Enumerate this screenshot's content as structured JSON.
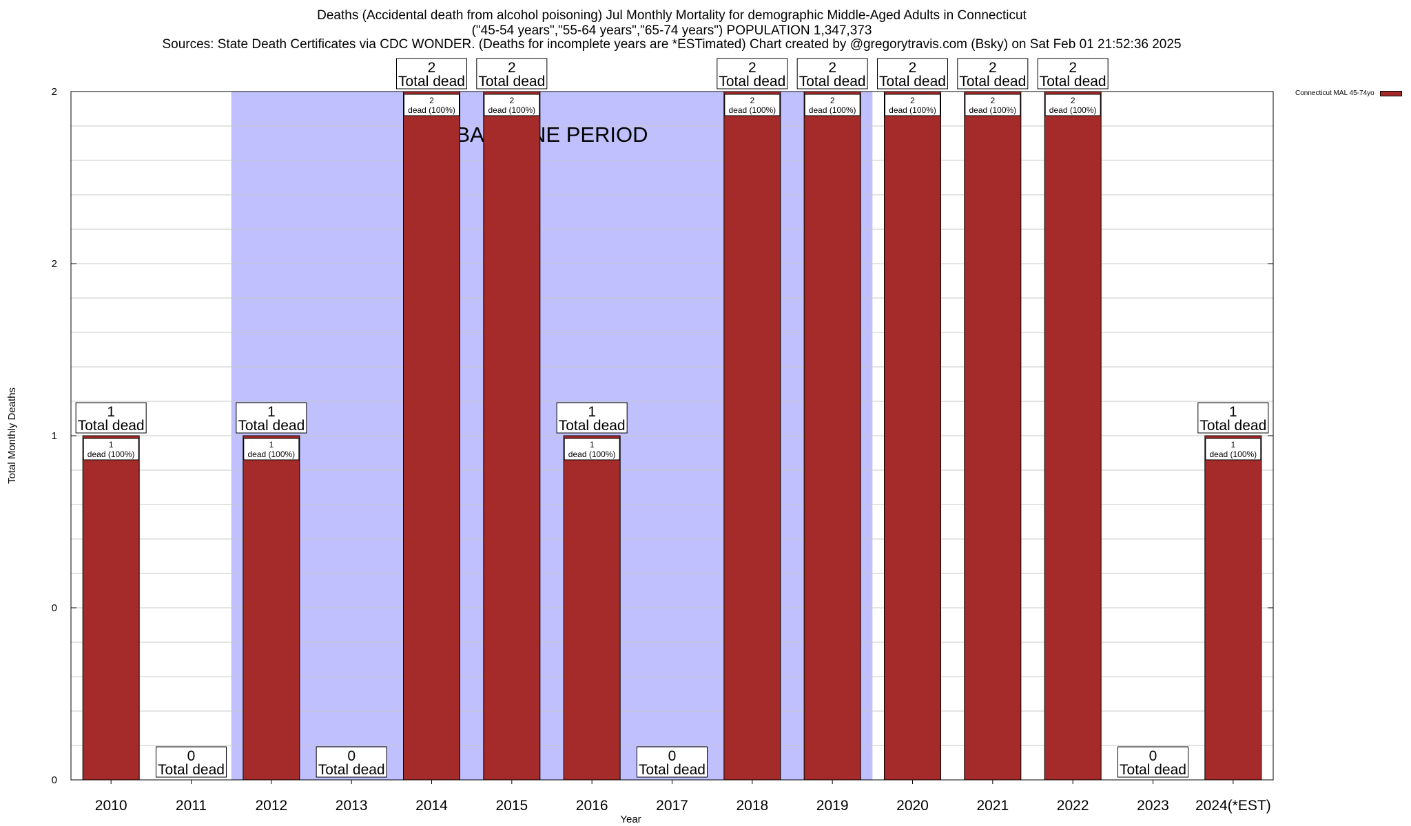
{
  "title": {
    "line1": "Deaths (Accidental death from alcohol poisoning) Jul Monthly Mortality for demographic Middle-Aged Adults in Connecticut",
    "line2": "(\"45-54 years\",\"55-64 years\",\"65-74 years\") POPULATION 1,347,373",
    "line3": "Sources: State Death Certificates via CDC WONDER. (Deaths for incomplete years are *ESTimated)             Chart created by @gregorytravis.com (Bsky) on Sat Feb 01 21:52:36 2025"
  },
  "colors": {
    "bar": "#a52a2a",
    "baseline_band": "#c0c0ff",
    "grid": "#c8c8c8"
  },
  "chart_data": {
    "type": "bar",
    "xlabel": "Year",
    "ylabel": "Total Monthly Deaths",
    "ylim": [
      0,
      2
    ],
    "yticks": [
      {
        "value": 0,
        "label": "0"
      },
      {
        "value": 0.5,
        "label": "0"
      },
      {
        "value": 1,
        "label": "1"
      },
      {
        "value": 1.5,
        "label": "2"
      },
      {
        "value": 2,
        "label": "2"
      }
    ],
    "grid": true,
    "legend_position": "top-right",
    "baseline_annotation": {
      "label": "BASELINE PERIOD",
      "start": "2012",
      "end": "2019"
    },
    "bar_label_suffix": "Total dead",
    "segment_label_suffix": "dead (100%)",
    "categories": [
      "2010",
      "2011",
      "2012",
      "2013",
      "2014",
      "2015",
      "2016",
      "2017",
      "2018",
      "2019",
      "2020",
      "2021",
      "2022",
      "2023",
      "2024(*EST)"
    ],
    "series": [
      {
        "name": "Connecticut MAL 45-74yo",
        "values": [
          1,
          0,
          1,
          0,
          2,
          2,
          1,
          0,
          2,
          2,
          2,
          2,
          2,
          0,
          1
        ]
      }
    ]
  }
}
